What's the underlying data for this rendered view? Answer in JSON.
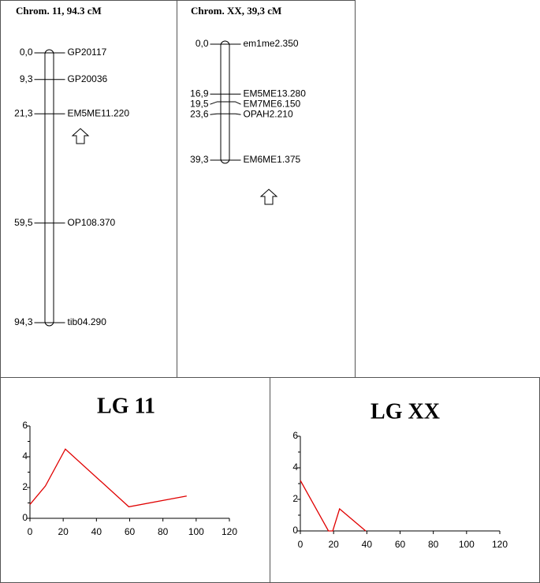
{
  "maps": [
    {
      "title": "Chrom. 11, 94.3 cM",
      "markers": [
        {
          "position": {
            "value": 0,
            "label": "0,0"
          },
          "name": "GP20117"
        },
        {
          "position": {
            "value": 9.3,
            "label": "9,3"
          },
          "name": "GP20036"
        },
        {
          "position": {
            "value": 21.3,
            "label": "21,3"
          },
          "name": "EM5ME11.220"
        },
        {
          "position": {
            "value": 59.5,
            "label": "59,5"
          },
          "name": "OP108.370"
        },
        {
          "position": {
            "value": 94.3,
            "label": "94,3"
          },
          "name": "tib04.290"
        }
      ]
    },
    {
      "title": "Chrom. XX, 39,3 cM",
      "markers": [
        {
          "position": {
            "value": 0,
            "label": "0,0"
          },
          "name": "em1me2.350"
        },
        {
          "position": {
            "value": 16.9,
            "label": "16,9"
          },
          "name": "EM5ME13.280"
        },
        {
          "position": {
            "value": 19.5,
            "label": "19,5"
          },
          "name": "EM7ME6.150"
        },
        {
          "position": {
            "value": 23.6,
            "label": "23,6"
          },
          "name": "OPAH2.210"
        },
        {
          "position": {
            "value": 39.3,
            "label": "39,3"
          },
          "name": "EM6ME1.375"
        }
      ]
    }
  ],
  "chart_data": [
    {
      "type": "line",
      "title": "LG 11",
      "x": [
        0,
        9.3,
        21.3,
        59.5,
        94.3
      ],
      "series": [
        {
          "color": "#e00000",
          "values": [
            0.9,
            2.1,
            4.5,
            0.75,
            1.45
          ]
        }
      ],
      "xlim": [
        0,
        120
      ],
      "xticks": [
        0,
        20,
        40,
        60,
        80,
        100,
        120
      ],
      "ylim": [
        0,
        6
      ],
      "yticks": [
        0,
        2,
        4,
        6
      ],
      "yminorticks": [
        1,
        3,
        5
      ]
    },
    {
      "type": "line",
      "title": "LG XX",
      "x": [
        0,
        16.9,
        19.5,
        23.6,
        39.3
      ],
      "series": [
        {
          "color": "#e00000",
          "values": [
            3.2,
            0,
            0,
            1.4,
            0
          ]
        }
      ],
      "xlim": [
        0,
        120
      ],
      "xticks": [
        0,
        20,
        40,
        60,
        80,
        100,
        120
      ],
      "ylim": [
        0,
        6
      ],
      "yticks": [
        0,
        2,
        4,
        6
      ],
      "yminorticks": [
        1,
        3,
        5
      ]
    }
  ]
}
